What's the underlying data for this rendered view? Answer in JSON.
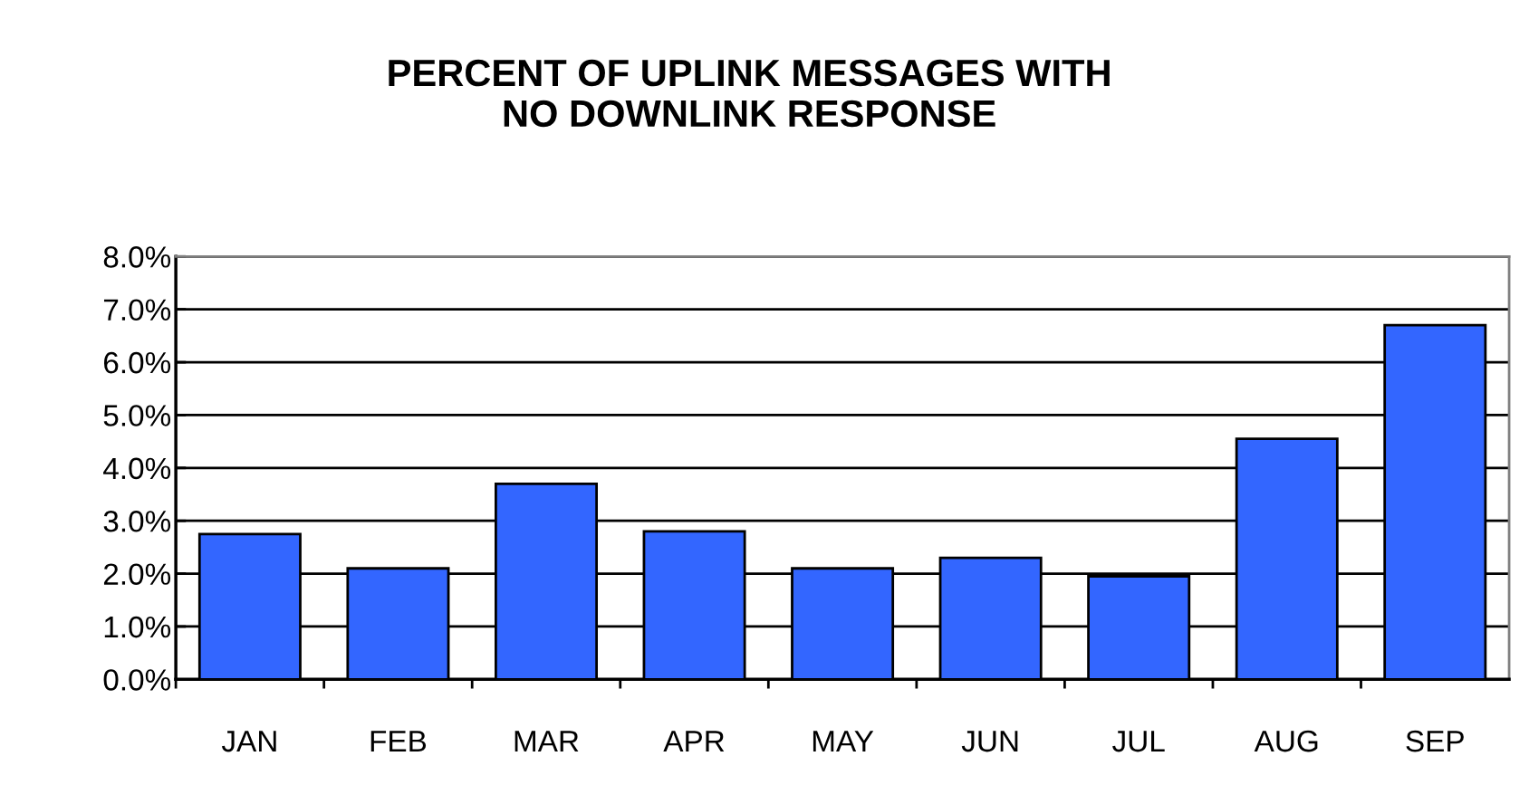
{
  "chart_data": {
    "type": "bar",
    "title": "PERCENT OF UPLINK MESSAGES WITH\nNO DOWNLINK RESPONSE",
    "categories": [
      "JAN",
      "FEB",
      "MAR",
      "APR",
      "MAY",
      "JUN",
      "JUL",
      "AUG",
      "SEP"
    ],
    "values": [
      2.75,
      2.1,
      3.7,
      2.8,
      2.1,
      2.3,
      1.95,
      4.55,
      6.7
    ],
    "color": "#3366ff",
    "ylim": [
      0,
      8
    ],
    "yticks": [
      {
        "value": 0,
        "label": "0.0%"
      },
      {
        "value": 1,
        "label": "1.0%"
      },
      {
        "value": 2,
        "label": "2.0%"
      },
      {
        "value": 3,
        "label": "3.0%"
      },
      {
        "value": 4,
        "label": "4.0%"
      },
      {
        "value": 5,
        "label": "5.0%"
      },
      {
        "value": 6,
        "label": "6.0%"
      },
      {
        "value": 7,
        "label": "7.0%"
      },
      {
        "value": 8,
        "label": "8.0%"
      }
    ],
    "grid": "y",
    "legend": false
  }
}
